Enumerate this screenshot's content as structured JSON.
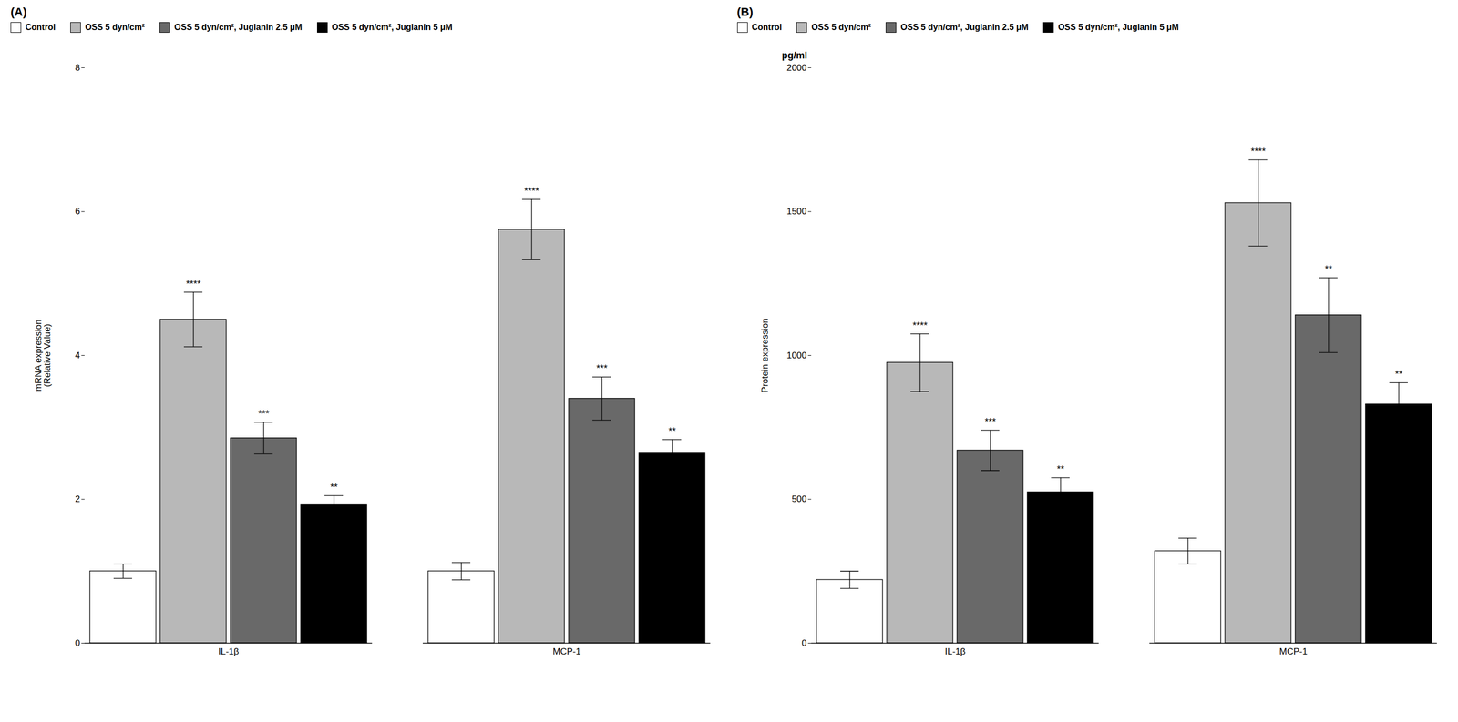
{
  "chart_data": [
    {
      "type": "bar",
      "title": "(A)",
      "ylabel": "mRNA expression\n(Relative Value)",
      "categories": [
        "IL-1β",
        "MCP-1"
      ],
      "series": [
        {
          "name": "Control",
          "color": "#ffffff",
          "values": [
            1.0,
            1.0
          ],
          "errors": [
            0.1,
            0.12
          ]
        },
        {
          "name": "OSS 5 dyn/cm²",
          "color": "#b8b8b8",
          "values": [
            4.5,
            5.75
          ],
          "errors": [
            0.38,
            0.42
          ],
          "sig_labels": [
            "****",
            "****"
          ]
        },
        {
          "name": "OSS 5 dyn/cm², Juglanin 2.5 μM",
          "color": "#696969",
          "values": [
            2.85,
            3.4
          ],
          "errors": [
            0.22,
            0.3
          ],
          "sig_labels": [
            "***",
            "***"
          ]
        },
        {
          "name": "OSS 5 dyn/cm², Juglanin 5 μM",
          "color": "#000000",
          "values": [
            1.92,
            2.65
          ],
          "errors": [
            0.13,
            0.18
          ],
          "sig_labels": [
            "**",
            "**"
          ]
        }
      ],
      "ylim": [
        0,
        8
      ],
      "yticks": [
        0,
        2,
        4,
        6,
        8
      ],
      "grid": false,
      "legend": "upper left"
    },
    {
      "type": "bar",
      "title": "(B)",
      "ylabel": "Protein expression",
      "annotations": [
        "pg/ml"
      ],
      "categories": [
        "IL-1β",
        "MCP-1"
      ],
      "series": [
        {
          "name": "Control",
          "color": "#ffffff",
          "values": [
            220,
            320
          ],
          "errors": [
            30,
            45
          ]
        },
        {
          "name": "OSS 5 dyn/cm²",
          "color": "#b8b8b8",
          "values": [
            975,
            1530
          ],
          "errors": [
            100,
            150
          ],
          "sig_labels": [
            "****",
            "****"
          ]
        },
        {
          "name": "OSS 5 dyn/cm², Juglanin 2.5 μM",
          "color": "#696969",
          "values": [
            670,
            1140
          ],
          "errors": [
            70,
            130
          ],
          "sig_labels": [
            "***",
            "**"
          ]
        },
        {
          "name": "OSS 5 dyn/cm², Juglanin 5 μM",
          "color": "#000000",
          "values": [
            525,
            830
          ],
          "errors": [
            50,
            75
          ],
          "sig_labels": [
            "**",
            "**"
          ]
        }
      ],
      "ylim": [
        0,
        2000
      ],
      "yticks": [
        0,
        500,
        1000,
        1500,
        2000
      ],
      "grid": false,
      "legend": "upper left"
    }
  ]
}
